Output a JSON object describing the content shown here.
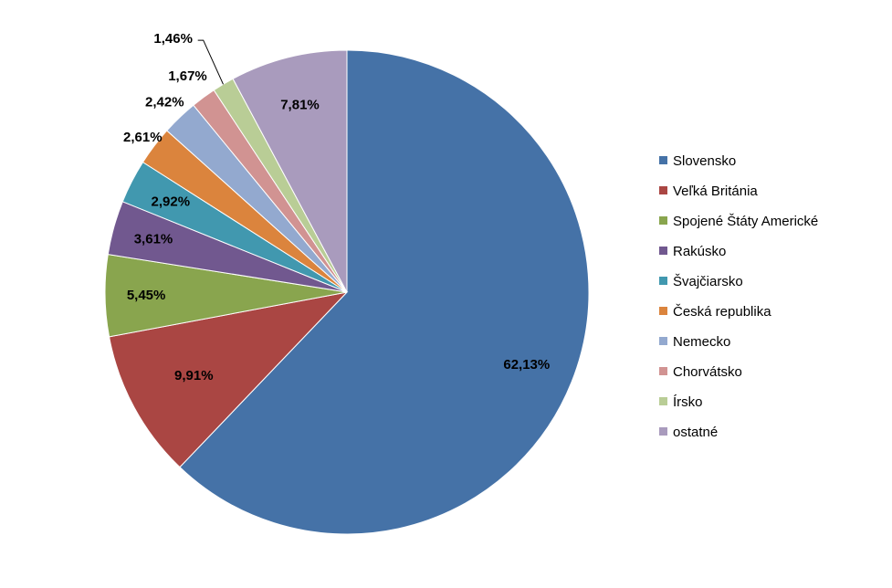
{
  "chart_data": {
    "type": "pie",
    "title": "",
    "legend_position": "right",
    "categories": [
      "Slovensko",
      "Veľká Británia",
      "Spojené Štáty Americké",
      "Rakúsko",
      "Švajčiarsko",
      "Česká republika",
      "Nemecko",
      "Chorvátsko",
      "Írsko",
      "ostatné"
    ],
    "values": [
      62.13,
      9.91,
      5.45,
      3.61,
      2.92,
      2.61,
      2.42,
      1.67,
      1.46,
      7.81
    ],
    "labels": [
      "62,13%",
      "9,91%",
      "5,45%",
      "3,61%",
      "2,92%",
      "2,61%",
      "2,42%",
      "1,67%",
      "1,46%",
      "7,81%"
    ],
    "colors": [
      "#4572A7",
      "#AA4643",
      "#89A54E",
      "#71588F",
      "#4198AF",
      "#DB843D",
      "#93A9CF",
      "#D19392",
      "#B9CD96",
      "#A99BBD"
    ]
  }
}
